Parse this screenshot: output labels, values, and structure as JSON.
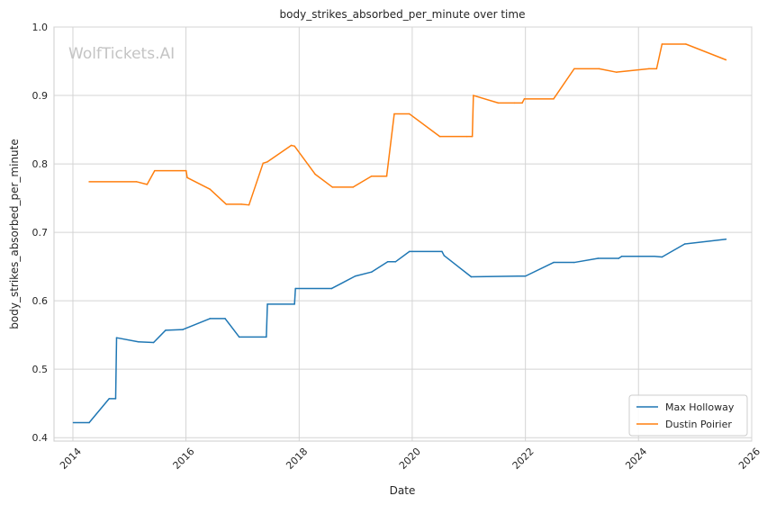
{
  "chart_data": {
    "type": "line",
    "title": "body_strikes_absorbed_per_minute over time",
    "xlabel": "Date",
    "ylabel": "body_strikes_absorbed_per_minute",
    "watermark": "WolfTickets.AI",
    "xlim": [
      "2013-09-01",
      "2026-01-01"
    ],
    "ylim": [
      0.395,
      1.0
    ],
    "x_ticks": [
      "2014",
      "2016",
      "2018",
      "2020",
      "2022",
      "2024",
      "2026"
    ],
    "y_ticks": [
      "0.4",
      "0.5",
      "0.6",
      "0.7",
      "0.8",
      "0.9",
      "1.0"
    ],
    "grid": true,
    "legend_position": "lower-right",
    "series": [
      {
        "name": "Max Holloway",
        "color": "#1f77b4",
        "points": [
          [
            "2014-01-04",
            0.422
          ],
          [
            "2014-04-16",
            0.422
          ],
          [
            "2014-08-23",
            0.457
          ],
          [
            "2014-10-04",
            0.457
          ],
          [
            "2014-10-10",
            0.546
          ],
          [
            "2015-02-28",
            0.54
          ],
          [
            "2015-06-06",
            0.539
          ],
          [
            "2015-08-23",
            0.557
          ],
          [
            "2015-12-12",
            0.558
          ],
          [
            "2016-06-04",
            0.574
          ],
          [
            "2016-09-10",
            0.574
          ],
          [
            "2016-12-10",
            0.547
          ],
          [
            "2017-06-03",
            0.547
          ],
          [
            "2017-06-10",
            0.595
          ],
          [
            "2017-12-02",
            0.595
          ],
          [
            "2017-12-08",
            0.618
          ],
          [
            "2018-07-30",
            0.618
          ],
          [
            "2018-12-29",
            0.636
          ],
          [
            "2019-04-13",
            0.642
          ],
          [
            "2019-07-27",
            0.657
          ],
          [
            "2019-09-15",
            0.657
          ],
          [
            "2019-12-14",
            0.672
          ],
          [
            "2020-07-11",
            0.672
          ],
          [
            "2020-07-25",
            0.666
          ],
          [
            "2021-01-16",
            0.635
          ],
          [
            "2021-11-13",
            0.636
          ],
          [
            "2022-01-01",
            0.636
          ],
          [
            "2022-07-02",
            0.656
          ],
          [
            "2022-11-12",
            0.656
          ],
          [
            "2023-04-15",
            0.662
          ],
          [
            "2023-08-26",
            0.662
          ],
          [
            "2023-09-15",
            0.665
          ],
          [
            "2024-04-13",
            0.665
          ],
          [
            "2024-06-01",
            0.664
          ],
          [
            "2024-10-26",
            0.683
          ],
          [
            "2025-07-19",
            0.69
          ]
        ]
      },
      {
        "name": "Dustin Poirier",
        "color": "#ff7f0e",
        "points": [
          [
            "2014-04-16",
            0.774
          ],
          [
            "2015-02-15",
            0.774
          ],
          [
            "2015-04-25",
            0.77
          ],
          [
            "2015-06-13",
            0.79
          ],
          [
            "2016-01-02",
            0.79
          ],
          [
            "2016-01-09",
            0.78
          ],
          [
            "2016-06-04",
            0.763
          ],
          [
            "2016-09-17",
            0.741
          ],
          [
            "2016-12-24",
            0.741
          ],
          [
            "2017-02-11",
            0.74
          ],
          [
            "2017-05-13",
            0.801
          ],
          [
            "2017-06-10",
            0.803
          ],
          [
            "2017-11-11",
            0.827
          ],
          [
            "2017-12-02",
            0.826
          ],
          [
            "2018-04-14",
            0.785
          ],
          [
            "2018-08-04",
            0.766
          ],
          [
            "2018-12-15",
            0.766
          ],
          [
            "2019-04-13",
            0.782
          ],
          [
            "2019-07-20",
            0.782
          ],
          [
            "2019-09-07",
            0.873
          ],
          [
            "2019-12-14",
            0.873
          ],
          [
            "2020-06-27",
            0.84
          ],
          [
            "2020-12-19",
            0.84
          ],
          [
            "2021-01-23",
            0.84
          ],
          [
            "2021-01-30",
            0.9
          ],
          [
            "2021-07-10",
            0.889
          ],
          [
            "2021-10-23",
            0.889
          ],
          [
            "2021-12-11",
            0.889
          ],
          [
            "2021-12-25",
            0.895
          ],
          [
            "2022-07-02",
            0.895
          ],
          [
            "2022-11-12",
            0.939
          ],
          [
            "2023-04-22",
            0.939
          ],
          [
            "2023-08-12",
            0.934
          ],
          [
            "2024-03-09",
            0.939
          ],
          [
            "2024-04-27",
            0.939
          ],
          [
            "2024-06-01",
            0.975
          ],
          [
            "2024-11-02",
            0.975
          ],
          [
            "2025-07-19",
            0.952
          ]
        ]
      }
    ]
  }
}
